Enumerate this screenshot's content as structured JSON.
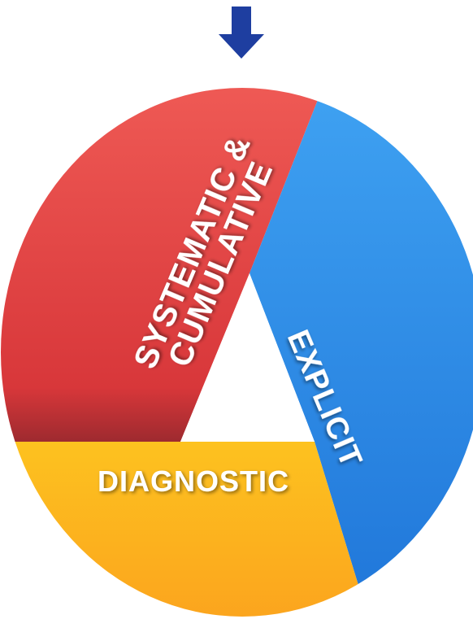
{
  "diagram": {
    "segments": [
      {
        "id": "systematic",
        "lines": [
          "SYSTEMATIC &",
          "CUMULATIVE"
        ],
        "color": "#df3c40"
      },
      {
        "id": "explicit",
        "lines": [
          "EXPLICIT"
        ],
        "color": "#2f8ee8"
      },
      {
        "id": "diagnostic",
        "lines": [
          "DIAGNOSTIC"
        ],
        "color": "#fcb522"
      }
    ],
    "center_color": "#ffffff",
    "pointer": {
      "icon": "arrow-down-icon",
      "color": "#1e3ea0"
    }
  }
}
